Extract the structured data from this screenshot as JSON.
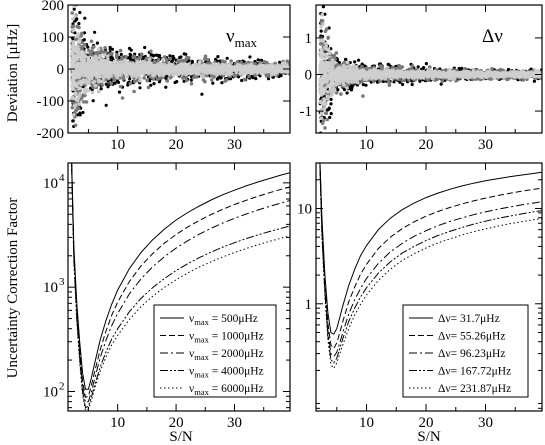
{
  "figure": {
    "shared_ylabel_top": "Deviation [μHz]",
    "shared_ylabel_bottom": "Uncertainty Correction Factor",
    "xlabel": "S/N"
  },
  "chart_data": [
    {
      "id": "numax-deviation",
      "type": "scatter",
      "panel_label": "ν",
      "panel_label_sub": "max",
      "ylabel": "Deviation [μHz]",
      "xlim": [
        1.5,
        39.5
      ],
      "ylim": [
        -200,
        200
      ],
      "xticks": [
        10,
        20,
        30
      ],
      "yticks": [
        -200,
        -100,
        0,
        100,
        200
      ],
      "grid": false,
      "series": [
        {
          "color": "#000000",
          "spread": [
            [
              3,
              190
            ],
            [
              5,
              95
            ],
            [
              10,
              55
            ],
            [
              20,
              40
            ],
            [
              30,
              30
            ],
            [
              38,
              25
            ]
          ]
        },
        {
          "color": "#7a7a7a",
          "spread": [
            [
              3,
              160
            ],
            [
              5,
              80
            ],
            [
              10,
              45
            ],
            [
              20,
              30
            ],
            [
              30,
              25
            ],
            [
              38,
              20
            ]
          ]
        },
        {
          "color": "#c8c8c8",
          "spread": [
            [
              3,
              120
            ],
            [
              5,
              55
            ],
            [
              10,
              25
            ],
            [
              20,
              18
            ],
            [
              30,
              15
            ],
            [
              38,
              12
            ]
          ]
        }
      ]
    },
    {
      "id": "dnu-deviation",
      "type": "scatter",
      "panel_label": "Δν",
      "xlim": [
        1.5,
        39.5
      ],
      "ylim": [
        -1.6,
        1.9
      ],
      "xticks": [
        10,
        20,
        30
      ],
      "yticks": [
        -1,
        0,
        1
      ],
      "grid": false,
      "series": [
        {
          "color": "#000000",
          "spread": [
            [
              3,
              1.7
            ],
            [
              5,
              0.5
            ],
            [
              10,
              0.25
            ],
            [
              20,
              0.18
            ],
            [
              30,
              0.14
            ],
            [
              38,
              0.12
            ]
          ]
        },
        {
          "color": "#7a7a7a",
          "spread": [
            [
              3,
              1.4
            ],
            [
              5,
              0.4
            ],
            [
              10,
              0.2
            ],
            [
              20,
              0.14
            ],
            [
              30,
              0.12
            ],
            [
              38,
              0.1
            ]
          ]
        },
        {
          "color": "#c8c8c8",
          "spread": [
            [
              3,
              1.0
            ],
            [
              5,
              0.3
            ],
            [
              10,
              0.12
            ],
            [
              20,
              0.09
            ],
            [
              30,
              0.08
            ],
            [
              38,
              0.07
            ]
          ]
        }
      ]
    },
    {
      "id": "numax-correction",
      "type": "line",
      "ylabel": "Uncertainty Correction Factor",
      "xlabel": "S/N",
      "xlim": [
        1.5,
        39.5
      ],
      "ylim": [
        65,
        15500
      ],
      "yscale": "log",
      "yticks": [
        100,
        1000,
        10000
      ],
      "ytick_labels": [
        "10",
        "10",
        "10"
      ],
      "ytick_exponents": [
        "2",
        "3",
        "4"
      ],
      "xticks": [
        10,
        20,
        30
      ],
      "legend": "bottom-right",
      "x": [
        2.0,
        2.5,
        3.0,
        3.5,
        4.0,
        4.5,
        5.0,
        5.5,
        6.0,
        7.0,
        8.0,
        9.0,
        10.0,
        12.0,
        14.0,
        16.0,
        18.0,
        20.0,
        22.0,
        24.0,
        26.0,
        28.0,
        30.0,
        32.0,
        34.0,
        36.0,
        38.0,
        39.5
      ],
      "series": [
        {
          "name_prefix": "ν",
          "name_sub": "max",
          "name_suffix": " = 500μHz",
          "dash": "",
          "values": [
            30000,
            2500,
            700,
            300,
            150,
            105,
            105,
            135,
            180,
            310,
            480,
            690,
            940,
            1500,
            2150,
            2850,
            3600,
            4400,
            5200,
            6000,
            6850,
            7700,
            8500,
            9350,
            10200,
            11000,
            11900,
            12500
          ]
        },
        {
          "name_prefix": "ν",
          "name_sub": "max",
          "name_suffix": " = 1000μHz",
          "dash": "6,3",
          "values": [
            30000,
            2300,
            620,
            260,
            125,
            88,
            90,
            115,
            150,
            250,
            380,
            540,
            720,
            1130,
            1600,
            2100,
            2640,
            3200,
            3780,
            4370,
            4970,
            5580,
            6200,
            6800,
            7430,
            8050,
            8680,
            9150
          ]
        },
        {
          "name_prefix": "ν",
          "name_sub": "max",
          "name_suffix": " = 2000μHz",
          "dash": "8,3,2,3",
          "values": [
            30000,
            2100,
            560,
            230,
            110,
            78,
            80,
            100,
            128,
            210,
            310,
            430,
            560,
            860,
            1200,
            1570,
            1960,
            2370,
            2790,
            3230,
            3670,
            4120,
            4570,
            5030,
            5490,
            5950,
            6410,
            6770
          ]
        },
        {
          "name_prefix": "ν",
          "name_sub": "max",
          "name_suffix": " = 4000μHz",
          "dash": "8,2,2,2,2,2",
          "values": [
            30000,
            1900,
            500,
            205,
            98,
            70,
            72,
            88,
            112,
            170,
            240,
            320,
            400,
            580,
            780,
            990,
            1210,
            1440,
            1680,
            1920,
            2170,
            2420,
            2670,
            2920,
            3170,
            3420,
            3670,
            3860
          ]
        },
        {
          "name_prefix": "ν",
          "name_sub": "max",
          "name_suffix": " = 6000μHz",
          "dash": "1.5,2.5",
          "values": [
            30000,
            1800,
            470,
            190,
            92,
            66,
            68,
            82,
            104,
            155,
            215,
            280,
            345,
            490,
            650,
            820,
            995,
            1180,
            1370,
            1560,
            1750,
            1950,
            2150,
            2350,
            2550,
            2750,
            2950,
            3100
          ]
        }
      ]
    },
    {
      "id": "dnu-correction",
      "type": "line",
      "xlabel": "S/N",
      "xlim": [
        1.5,
        39.5
      ],
      "ylim": [
        0.075,
        30
      ],
      "yscale": "log",
      "yticks": [
        1,
        10
      ],
      "ytick_labels": [
        "1",
        "10"
      ],
      "xticks": [
        10,
        20,
        30
      ],
      "legend": "bottom-right",
      "x": [
        2.0,
        2.5,
        3.0,
        3.5,
        4.0,
        4.5,
        5.0,
        5.5,
        6.0,
        7.0,
        8.0,
        9.0,
        10.0,
        12.0,
        14.0,
        16.0,
        18.0,
        20.0,
        22.0,
        24.0,
        26.0,
        28.0,
        30.0,
        32.0,
        34.0,
        36.0,
        38.0,
        39.5
      ],
      "series": [
        {
          "name_prefix": "Δν",
          "name_suffix": "= 31.7μHz",
          "dash": "",
          "values": [
            60,
            8,
            2.0,
            0.8,
            0.5,
            0.48,
            0.55,
            0.72,
            0.95,
            1.55,
            2.3,
            3.2,
            4.1,
            6.0,
            7.9,
            9.7,
            11.4,
            13.0,
            14.5,
            15.9,
            17.2,
            18.4,
            19.5,
            20.5,
            21.5,
            22.4,
            23.3,
            24.0
          ]
        },
        {
          "name_prefix": "Δν",
          "name_suffix": "= 55.26μHz",
          "dash": "6,3",
          "values": [
            60,
            7,
            1.7,
            0.62,
            0.37,
            0.34,
            0.39,
            0.5,
            0.65,
            1.05,
            1.5,
            2.05,
            2.6,
            3.8,
            5.0,
            6.15,
            7.25,
            8.3,
            9.3,
            10.25,
            11.15,
            12.0,
            12.85,
            13.65,
            14.4,
            15.15,
            15.85,
            16.35
          ]
        },
        {
          "name_prefix": "Δν",
          "name_sub": "",
          "name_suffix": "= 96.23μHz",
          "dash": "8,3,2,3",
          "values": [
            60,
            6,
            1.45,
            0.52,
            0.3,
            0.28,
            0.31,
            0.39,
            0.5,
            0.78,
            1.1,
            1.45,
            1.85,
            2.65,
            3.5,
            4.3,
            5.1,
            5.85,
            6.6,
            7.3,
            7.95,
            8.6,
            9.2,
            9.8,
            10.35,
            10.9,
            11.4,
            11.8
          ]
        },
        {
          "name_prefix": "Δν",
          "name_suffix": "= 167.72μHz",
          "dash": "8,2,2,2,2,2",
          "values": [
            60,
            5.5,
            1.3,
            0.46,
            0.26,
            0.24,
            0.27,
            0.34,
            0.43,
            0.65,
            0.9,
            1.18,
            1.48,
            2.1,
            2.75,
            3.4,
            4.0,
            4.6,
            5.2,
            5.75,
            6.3,
            6.85,
            7.35,
            7.85,
            8.3,
            8.75,
            9.2,
            9.5
          ]
        },
        {
          "name_prefix": "Δν",
          "name_suffix": "= 231.87μHz",
          "dash": "1.5,2.5",
          "values": [
            60,
            5,
            1.2,
            0.42,
            0.23,
            0.21,
            0.24,
            0.3,
            0.37,
            0.55,
            0.76,
            0.99,
            1.24,
            1.76,
            2.3,
            2.85,
            3.35,
            3.85,
            4.35,
            4.8,
            5.25,
            5.7,
            6.1,
            6.5,
            6.9,
            7.25,
            7.6,
            7.85
          ]
        }
      ]
    }
  ]
}
